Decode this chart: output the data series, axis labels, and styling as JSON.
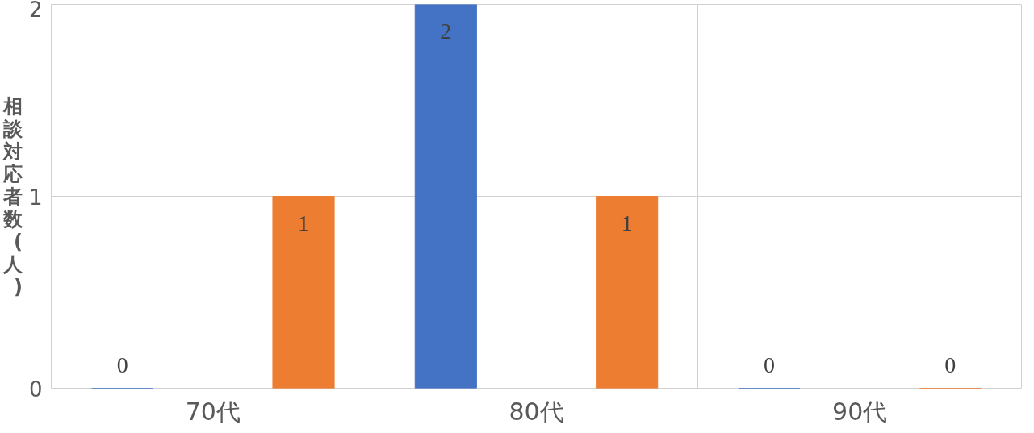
{
  "chart_data": {
    "type": "bar",
    "ylabel": "相談対応者数(人)",
    "categories": [
      "70代",
      "80代",
      "90代"
    ],
    "series": [
      {
        "color": "#4472c4",
        "values": [
          0,
          2,
          0
        ]
      },
      {
        "color": "#ed7d31",
        "values": [
          1,
          1,
          0
        ]
      }
    ],
    "ylim": [
      0,
      2
    ],
    "yticks": [
      0,
      1,
      2
    ],
    "grid": true,
    "data_labels": true
  }
}
